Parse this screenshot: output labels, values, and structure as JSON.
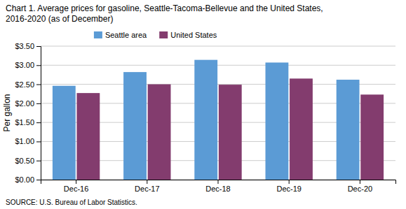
{
  "chart_data": {
    "type": "bar",
    "title": "Chart 1. Average prices for gasoline, Seattle-Tacoma-Bellevue and the United States,",
    "subtitle": "2016-2020  (as of December)",
    "ylabel": "Per gallon",
    "annotations": [
      "SOURCE: U.S. Bureau of Labor Statistics."
    ],
    "categories": [
      "Dec-16",
      "Dec-17",
      "Dec-18",
      "Dec-19",
      "Dec-20"
    ],
    "series": [
      {
        "name": "Seattle area",
        "color": "#5B9BD5",
        "values": [
          2.46,
          2.82,
          3.14,
          3.07,
          2.62
        ]
      },
      {
        "name": "United States",
        "color": "#833C6E",
        "values": [
          2.27,
          2.5,
          2.49,
          2.65,
          2.23
        ]
      }
    ],
    "ylim": [
      0.0,
      3.5
    ],
    "yticks": [
      {
        "value": 0.0,
        "label": "$0.00"
      },
      {
        "value": 0.5,
        "label": "$0.50"
      },
      {
        "value": 1.0,
        "label": "$1.00"
      },
      {
        "value": 1.5,
        "label": "$1.50"
      },
      {
        "value": 2.0,
        "label": "$2.00"
      },
      {
        "value": 2.5,
        "label": "$2.50"
      },
      {
        "value": 3.0,
        "label": "$3.00"
      },
      {
        "value": 3.5,
        "label": "$3.50"
      }
    ],
    "grid": true,
    "legend": "upper left"
  }
}
